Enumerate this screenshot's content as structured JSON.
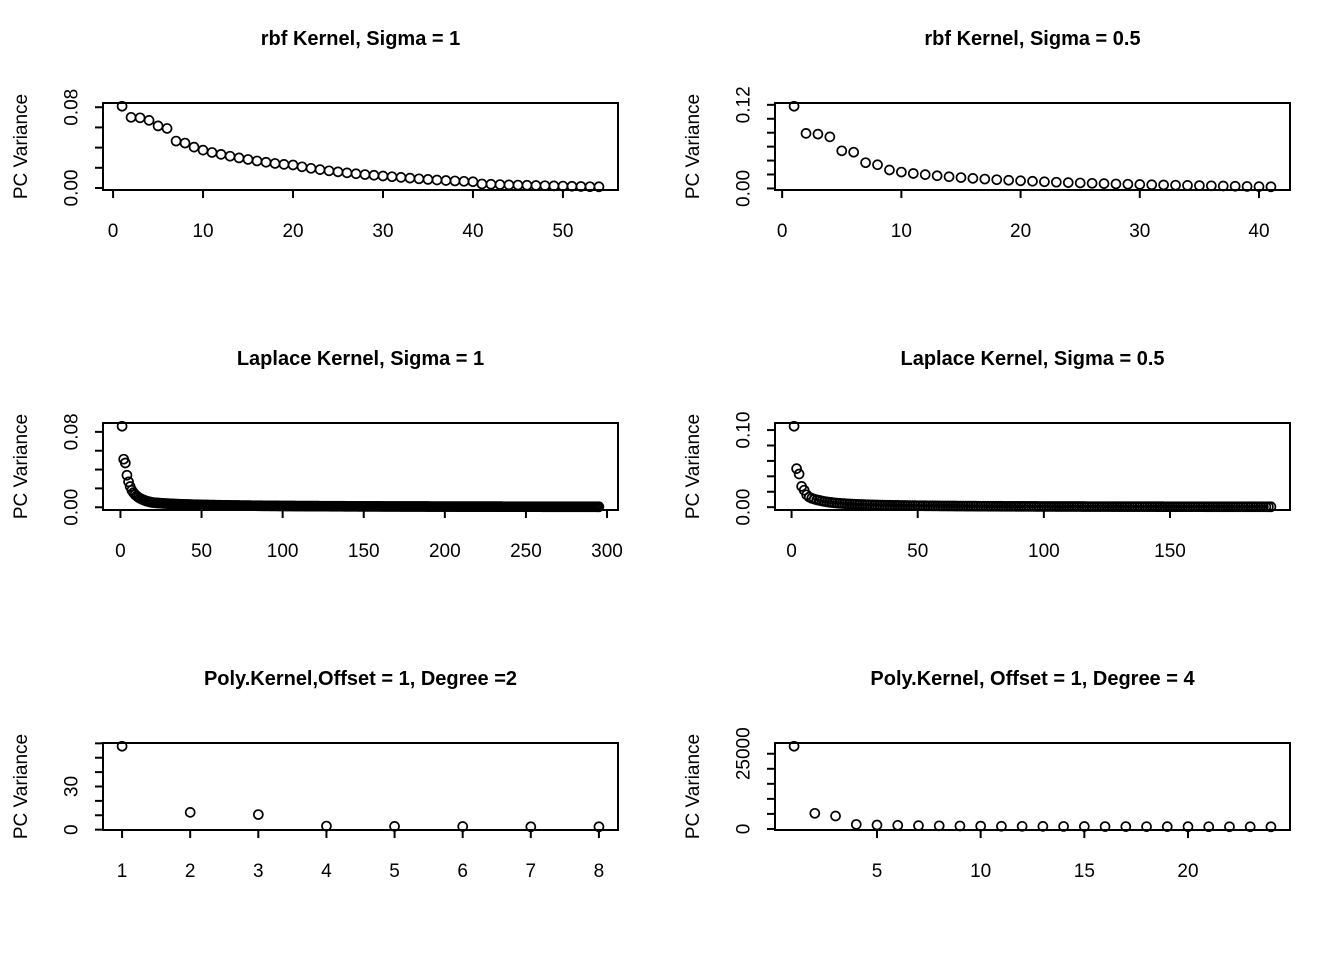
{
  "page": {
    "background": "#ffffff",
    "foreground": "#000000",
    "layout": "3x2 grid of R base-graphics scatter plots (kernel PCA scree plots)"
  },
  "chart_data": [
    {
      "type": "scatter",
      "title": "rbf Kernel, Sigma = 1",
      "xlabel": "",
      "ylabel": "PC Variance",
      "marker": "open-circle",
      "color": "#000000",
      "grid": false,
      "n_points": 54,
      "x_start": 1,
      "values": [
        0.081,
        0.07,
        0.0695,
        0.067,
        0.0615,
        0.059,
        0.0465,
        0.0445,
        0.0405,
        0.0375,
        0.0352,
        0.0333,
        0.0315,
        0.0298,
        0.0283,
        0.0268,
        0.0255,
        0.0243,
        0.0234,
        0.0228,
        0.021,
        0.0195,
        0.0182,
        0.017,
        0.016,
        0.015,
        0.0141,
        0.0133,
        0.0126,
        0.0119,
        0.0112,
        0.0105,
        0.0098,
        0.0091,
        0.0085,
        0.0079,
        0.0074,
        0.007,
        0.0066,
        0.0062,
        0.004,
        0.0037,
        0.0034,
        0.0031,
        0.0029,
        0.0027,
        0.0025,
        0.0023,
        0.0021,
        0.0019,
        0.0017,
        0.0015,
        0.0013,
        0.0012
      ],
      "x_ticks": [
        {
          "value": 0,
          "label": "0"
        },
        {
          "value": 10,
          "label": "10"
        },
        {
          "value": 20,
          "label": "20"
        },
        {
          "value": 30,
          "label": "30"
        },
        {
          "value": 40,
          "label": "40"
        },
        {
          "value": 50,
          "label": "50"
        }
      ],
      "y_ticks": [
        {
          "value": 0,
          "label": "0.00"
        },
        {
          "value": 0.02
        },
        {
          "value": 0.04
        },
        {
          "value": 0.06
        },
        {
          "value": 0.08,
          "label": "0.08"
        }
      ]
    },
    {
      "type": "scatter",
      "title": "rbf Kernel, Sigma = 0.5",
      "xlabel": "",
      "ylabel": "PC Variance",
      "marker": "open-circle",
      "color": "#000000",
      "grid": false,
      "n_points": 41,
      "x_start": 1,
      "values": [
        0.118,
        0.079,
        0.078,
        0.074,
        0.054,
        0.052,
        0.037,
        0.034,
        0.0265,
        0.0235,
        0.0215,
        0.0198,
        0.0182,
        0.0168,
        0.0156,
        0.0145,
        0.0135,
        0.0126,
        0.0118,
        0.011,
        0.0103,
        0.0096,
        0.009,
        0.0084,
        0.0079,
        0.0074,
        0.0069,
        0.0065,
        0.0061,
        0.0057,
        0.0053,
        0.005,
        0.0047,
        0.0044,
        0.0041,
        0.0038,
        0.0035,
        0.0032,
        0.0029,
        0.0026,
        0.0024
      ],
      "x_ticks": [
        {
          "value": 0,
          "label": "0"
        },
        {
          "value": 10,
          "label": "10"
        },
        {
          "value": 20,
          "label": "20"
        },
        {
          "value": 30,
          "label": "30"
        },
        {
          "value": 40,
          "label": "40"
        }
      ],
      "y_ticks": [
        {
          "value": 0,
          "label": "0.00"
        },
        {
          "value": 0.02
        },
        {
          "value": 0.04
        },
        {
          "value": 0.06
        },
        {
          "value": 0.08
        },
        {
          "value": 0.1
        },
        {
          "value": 0.12,
          "label": "0.12"
        }
      ]
    },
    {
      "type": "scatter",
      "title": "Laplace Kernel, Sigma = 1",
      "xlabel": "",
      "ylabel": "PC Variance",
      "marker": "open-circle",
      "color": "#000000",
      "grid": false,
      "n_points": 295,
      "x_start": 1,
      "values": [
        0.086,
        0.051,
        0.047,
        0.034,
        0.027,
        0.022,
        0.018,
        0.0155,
        0.0135,
        0.012,
        0.0105,
        0.0095,
        0.0086,
        0.0078,
        0.0072,
        0.0066,
        0.0061,
        0.0057,
        0.0053,
        0.005
      ],
      "tail": {
        "x_from": 21,
        "x_to": 295,
        "y_from": 0.0048,
        "y_to": 0.0005,
        "decay": "hyperbolic"
      },
      "x_ticks": [
        {
          "value": 0,
          "label": "0"
        },
        {
          "value": 50,
          "label": "50"
        },
        {
          "value": 100,
          "label": "100"
        },
        {
          "value": 150,
          "label": "150"
        },
        {
          "value": 200,
          "label": "200"
        },
        {
          "value": 250,
          "label": "250"
        },
        {
          "value": 300,
          "label": "300"
        }
      ],
      "y_ticks": [
        {
          "value": 0,
          "label": "0.00"
        },
        {
          "value": 0.02
        },
        {
          "value": 0.04
        },
        {
          "value": 0.06
        },
        {
          "value": 0.08,
          "label": "0.08"
        }
      ]
    },
    {
      "type": "scatter",
      "title": "Laplace Kernel, Sigma = 0.5",
      "xlabel": "",
      "ylabel": "PC Variance",
      "marker": "open-circle",
      "color": "#000000",
      "grid": false,
      "n_points": 190,
      "x_start": 1,
      "values": [
        0.105,
        0.05,
        0.043,
        0.027,
        0.022,
        0.016,
        0.013,
        0.0115,
        0.0105,
        0.0095
      ],
      "tail": {
        "x_from": 11,
        "x_to": 190,
        "y_from": 0.0088,
        "y_to": 0.0005,
        "decay": "hyperbolic"
      },
      "x_ticks": [
        {
          "value": 0,
          "label": "0"
        },
        {
          "value": 50,
          "label": "50"
        },
        {
          "value": 100,
          "label": "100"
        },
        {
          "value": 150,
          "label": "150"
        }
      ],
      "y_ticks": [
        {
          "value": 0,
          "label": "0.00"
        },
        {
          "value": 0.02
        },
        {
          "value": 0.04
        },
        {
          "value": 0.06
        },
        {
          "value": 0.08
        },
        {
          "value": 0.1,
          "label": "0.10"
        }
      ]
    },
    {
      "type": "scatter",
      "title": "Poly.Kernel,Offset = 1, Degree =2",
      "xlabel": "",
      "ylabel": "PC Variance",
      "marker": "open-circle",
      "color": "#000000",
      "grid": false,
      "n_points": 8,
      "x_start": 1,
      "values": [
        58,
        12,
        10.5,
        2.5,
        2.3,
        2.2,
        2.0,
        2.0
      ],
      "x_ticks": [
        {
          "value": 1,
          "label": "1"
        },
        {
          "value": 2,
          "label": "2"
        },
        {
          "value": 3,
          "label": "3"
        },
        {
          "value": 4,
          "label": "4"
        },
        {
          "value": 5,
          "label": "5"
        },
        {
          "value": 6,
          "label": "6"
        },
        {
          "value": 7,
          "label": "7"
        },
        {
          "value": 8,
          "label": "8"
        }
      ],
      "y_ticks": [
        {
          "value": 0,
          "label": "0"
        },
        {
          "value": 10
        },
        {
          "value": 20
        },
        {
          "value": 30,
          "label": "30"
        },
        {
          "value": 40
        },
        {
          "value": 50
        },
        {
          "value": 60
        }
      ]
    },
    {
      "type": "scatter",
      "title": "Poly.Kernel, Offset = 1, Degree = 4",
      "xlabel": "",
      "ylabel": "PC Variance",
      "marker": "open-circle",
      "color": "#000000",
      "grid": false,
      "n_points": 24,
      "x_start": 1,
      "values": [
        27500,
        5200,
        4300,
        1500,
        1300,
        1200,
        1100,
        1050,
        1000,
        950,
        900,
        880,
        860,
        840,
        820,
        800,
        790,
        780,
        770,
        760,
        750,
        740,
        730,
        720
      ],
      "x_ticks": [
        {
          "value": 5,
          "label": "5"
        },
        {
          "value": 10,
          "label": "10"
        },
        {
          "value": 15,
          "label": "15"
        },
        {
          "value": 20,
          "label": "20"
        }
      ],
      "y_ticks": [
        {
          "value": 0,
          "label": "0"
        },
        {
          "value": 5000
        },
        {
          "value": 10000
        },
        {
          "value": 15000
        },
        {
          "value": 20000
        },
        {
          "value": 25000,
          "label": "25000"
        }
      ]
    }
  ]
}
